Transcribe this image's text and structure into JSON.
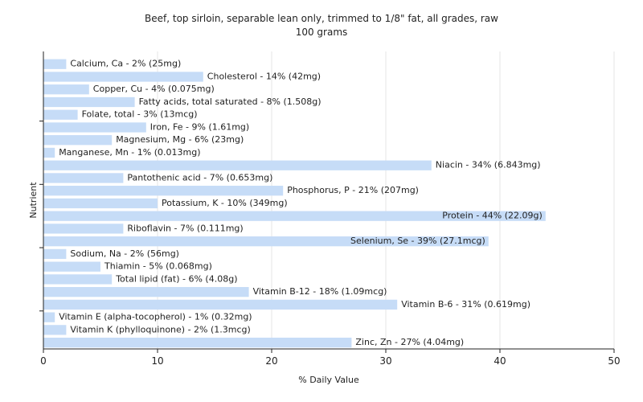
{
  "chart_data": {
    "type": "bar",
    "orientation": "horizontal",
    "title": "Beef, top sirloin, separable lean only, trimmed to 1/8\" fat, all grades, raw",
    "subtitle": "100 grams",
    "xlabel": "% Daily Value",
    "ylabel": "Nutrient",
    "xlim": [
      0,
      50
    ],
    "xticks": [
      0,
      10,
      20,
      30,
      40,
      50
    ],
    "grid": "vertical",
    "bar_color": "#c6dcf7",
    "categories": [
      "Calcium, Ca",
      "Cholesterol",
      "Copper, Cu",
      "Fatty acids, total saturated",
      "Folate, total",
      "Iron, Fe",
      "Magnesium, Mg",
      "Manganese, Mn",
      "Niacin",
      "Pantothenic acid",
      "Phosphorus, P",
      "Potassium, K",
      "Protein",
      "Riboflavin",
      "Selenium, Se",
      "Sodium, Na",
      "Thiamin",
      "Total lipid (fat)",
      "Vitamin B-12",
      "Vitamin B-6",
      "Vitamin E (alpha-tocopherol)",
      "Vitamin K (phylloquinone)",
      "Zinc, Zn"
    ],
    "values": [
      2,
      14,
      4,
      8,
      3,
      9,
      6,
      1,
      34,
      7,
      21,
      10,
      44,
      7,
      39,
      2,
      5,
      6,
      18,
      31,
      1,
      2,
      27
    ],
    "labels": [
      "Calcium, Ca - 2% (25mg)",
      "Cholesterol - 14% (42mg)",
      "Copper, Cu - 4% (0.075mg)",
      "Fatty acids, total saturated - 8% (1.508g)",
      "Folate, total - 3% (13mcg)",
      "Iron, Fe - 9% (1.61mg)",
      "Magnesium, Mg - 6% (23mg)",
      "Manganese, Mn - 1% (0.013mg)",
      "Niacin - 34% (6.843mg)",
      "Pantothenic acid - 7% (0.653mg)",
      "Phosphorus, P - 21% (207mg)",
      "Potassium, K - 10% (349mg)",
      "Protein - 44% (22.09g)",
      "Riboflavin - 7% (0.111mg)",
      "Selenium, Se - 39% (27.1mcg)",
      "Sodium, Na - 2% (56mg)",
      "Thiamin - 5% (0.068mg)",
      "Total lipid (fat) - 6% (4.08g)",
      "Vitamin B-12 - 18% (1.09mcg)",
      "Vitamin B-6 - 31% (0.619mg)",
      "Vitamin E (alpha-tocopherol) - 1% (0.32mg)",
      "Vitamin K (phylloquinone) - 2% (1.3mcg)",
      "Zinc, Zn - 27% (4.04mg)"
    ]
  }
}
